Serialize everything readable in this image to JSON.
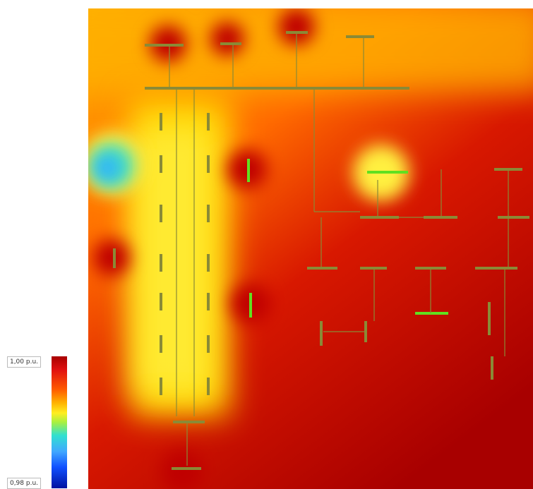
{
  "legend": {
    "max_label": "1,00 p.u.",
    "min_label": "0,98 p.u."
  }
}
